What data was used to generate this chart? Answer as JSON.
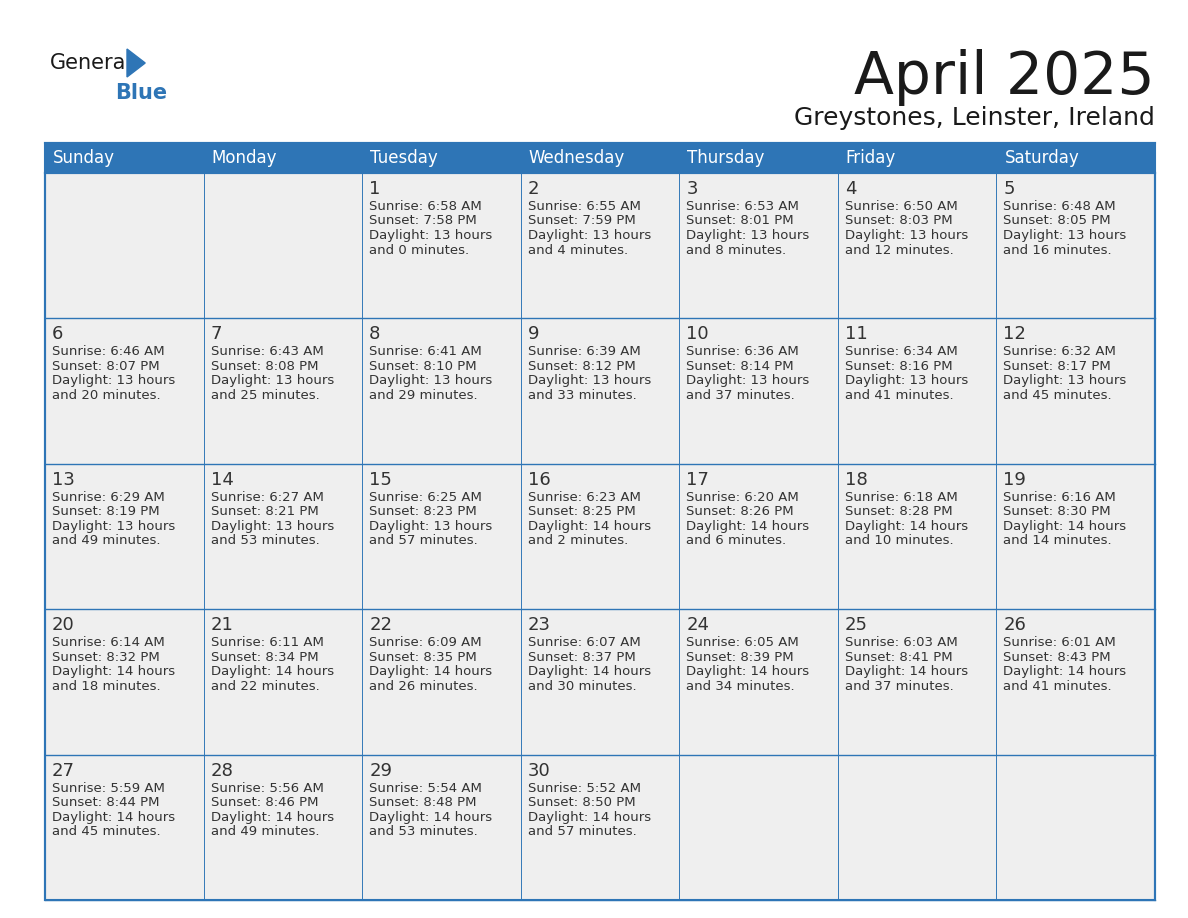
{
  "title": "April 2025",
  "subtitle": "Greystones, Leinster, Ireland",
  "header_bg": "#2E75B6",
  "header_text_color": "#FFFFFF",
  "cell_bg": "#EFEFEF",
  "border_color": "#2E75B6",
  "text_color": "#333333",
  "day_names": [
    "Sunday",
    "Monday",
    "Tuesday",
    "Wednesday",
    "Thursday",
    "Friday",
    "Saturday"
  ],
  "title_color": "#1A1A1A",
  "subtitle_color": "#1A1A1A",
  "logo_text_color": "#1A1A1A",
  "logo_blue_color": "#2E75B6",
  "weeks": [
    [
      {
        "day": "",
        "lines": []
      },
      {
        "day": "",
        "lines": []
      },
      {
        "day": "1",
        "lines": [
          "Sunrise: 6:58 AM",
          "Sunset: 7:58 PM",
          "Daylight: 13 hours",
          "and 0 minutes."
        ]
      },
      {
        "day": "2",
        "lines": [
          "Sunrise: 6:55 AM",
          "Sunset: 7:59 PM",
          "Daylight: 13 hours",
          "and 4 minutes."
        ]
      },
      {
        "day": "3",
        "lines": [
          "Sunrise: 6:53 AM",
          "Sunset: 8:01 PM",
          "Daylight: 13 hours",
          "and 8 minutes."
        ]
      },
      {
        "day": "4",
        "lines": [
          "Sunrise: 6:50 AM",
          "Sunset: 8:03 PM",
          "Daylight: 13 hours",
          "and 12 minutes."
        ]
      },
      {
        "day": "5",
        "lines": [
          "Sunrise: 6:48 AM",
          "Sunset: 8:05 PM",
          "Daylight: 13 hours",
          "and 16 minutes."
        ]
      }
    ],
    [
      {
        "day": "6",
        "lines": [
          "Sunrise: 6:46 AM",
          "Sunset: 8:07 PM",
          "Daylight: 13 hours",
          "and 20 minutes."
        ]
      },
      {
        "day": "7",
        "lines": [
          "Sunrise: 6:43 AM",
          "Sunset: 8:08 PM",
          "Daylight: 13 hours",
          "and 25 minutes."
        ]
      },
      {
        "day": "8",
        "lines": [
          "Sunrise: 6:41 AM",
          "Sunset: 8:10 PM",
          "Daylight: 13 hours",
          "and 29 minutes."
        ]
      },
      {
        "day": "9",
        "lines": [
          "Sunrise: 6:39 AM",
          "Sunset: 8:12 PM",
          "Daylight: 13 hours",
          "and 33 minutes."
        ]
      },
      {
        "day": "10",
        "lines": [
          "Sunrise: 6:36 AM",
          "Sunset: 8:14 PM",
          "Daylight: 13 hours",
          "and 37 minutes."
        ]
      },
      {
        "day": "11",
        "lines": [
          "Sunrise: 6:34 AM",
          "Sunset: 8:16 PM",
          "Daylight: 13 hours",
          "and 41 minutes."
        ]
      },
      {
        "day": "12",
        "lines": [
          "Sunrise: 6:32 AM",
          "Sunset: 8:17 PM",
          "Daylight: 13 hours",
          "and 45 minutes."
        ]
      }
    ],
    [
      {
        "day": "13",
        "lines": [
          "Sunrise: 6:29 AM",
          "Sunset: 8:19 PM",
          "Daylight: 13 hours",
          "and 49 minutes."
        ]
      },
      {
        "day": "14",
        "lines": [
          "Sunrise: 6:27 AM",
          "Sunset: 8:21 PM",
          "Daylight: 13 hours",
          "and 53 minutes."
        ]
      },
      {
        "day": "15",
        "lines": [
          "Sunrise: 6:25 AM",
          "Sunset: 8:23 PM",
          "Daylight: 13 hours",
          "and 57 minutes."
        ]
      },
      {
        "day": "16",
        "lines": [
          "Sunrise: 6:23 AM",
          "Sunset: 8:25 PM",
          "Daylight: 14 hours",
          "and 2 minutes."
        ]
      },
      {
        "day": "17",
        "lines": [
          "Sunrise: 6:20 AM",
          "Sunset: 8:26 PM",
          "Daylight: 14 hours",
          "and 6 minutes."
        ]
      },
      {
        "day": "18",
        "lines": [
          "Sunrise: 6:18 AM",
          "Sunset: 8:28 PM",
          "Daylight: 14 hours",
          "and 10 minutes."
        ]
      },
      {
        "day": "19",
        "lines": [
          "Sunrise: 6:16 AM",
          "Sunset: 8:30 PM",
          "Daylight: 14 hours",
          "and 14 minutes."
        ]
      }
    ],
    [
      {
        "day": "20",
        "lines": [
          "Sunrise: 6:14 AM",
          "Sunset: 8:32 PM",
          "Daylight: 14 hours",
          "and 18 minutes."
        ]
      },
      {
        "day": "21",
        "lines": [
          "Sunrise: 6:11 AM",
          "Sunset: 8:34 PM",
          "Daylight: 14 hours",
          "and 22 minutes."
        ]
      },
      {
        "day": "22",
        "lines": [
          "Sunrise: 6:09 AM",
          "Sunset: 8:35 PM",
          "Daylight: 14 hours",
          "and 26 minutes."
        ]
      },
      {
        "day": "23",
        "lines": [
          "Sunrise: 6:07 AM",
          "Sunset: 8:37 PM",
          "Daylight: 14 hours",
          "and 30 minutes."
        ]
      },
      {
        "day": "24",
        "lines": [
          "Sunrise: 6:05 AM",
          "Sunset: 8:39 PM",
          "Daylight: 14 hours",
          "and 34 minutes."
        ]
      },
      {
        "day": "25",
        "lines": [
          "Sunrise: 6:03 AM",
          "Sunset: 8:41 PM",
          "Daylight: 14 hours",
          "and 37 minutes."
        ]
      },
      {
        "day": "26",
        "lines": [
          "Sunrise: 6:01 AM",
          "Sunset: 8:43 PM",
          "Daylight: 14 hours",
          "and 41 minutes."
        ]
      }
    ],
    [
      {
        "day": "27",
        "lines": [
          "Sunrise: 5:59 AM",
          "Sunset: 8:44 PM",
          "Daylight: 14 hours",
          "and 45 minutes."
        ]
      },
      {
        "day": "28",
        "lines": [
          "Sunrise: 5:56 AM",
          "Sunset: 8:46 PM",
          "Daylight: 14 hours",
          "and 49 minutes."
        ]
      },
      {
        "day": "29",
        "lines": [
          "Sunrise: 5:54 AM",
          "Sunset: 8:48 PM",
          "Daylight: 14 hours",
          "and 53 minutes."
        ]
      },
      {
        "day": "30",
        "lines": [
          "Sunrise: 5:52 AM",
          "Sunset: 8:50 PM",
          "Daylight: 14 hours",
          "and 57 minutes."
        ]
      },
      {
        "day": "",
        "lines": []
      },
      {
        "day": "",
        "lines": []
      },
      {
        "day": "",
        "lines": []
      }
    ]
  ]
}
